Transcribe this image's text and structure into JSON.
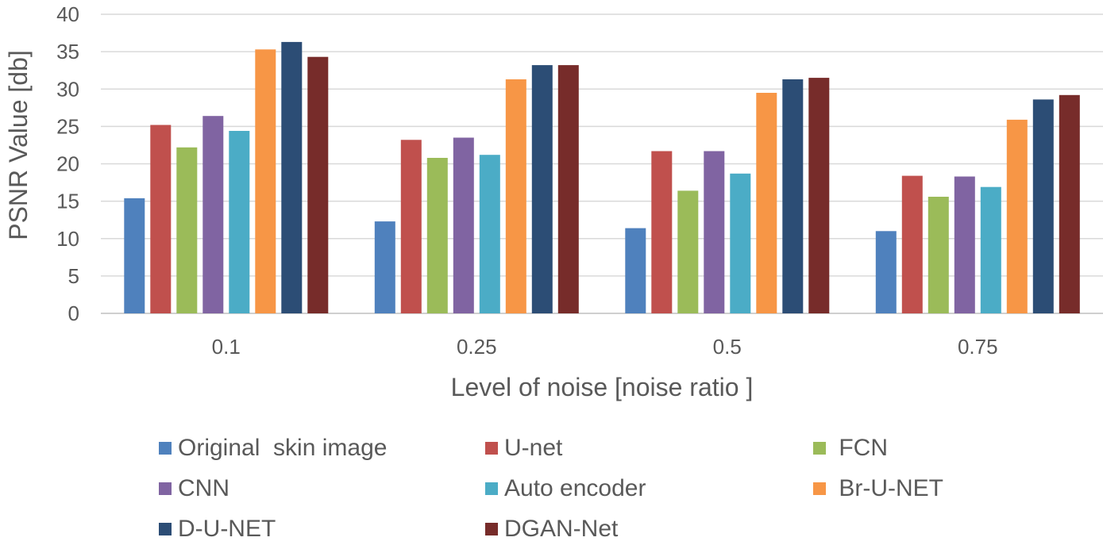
{
  "chart_data": {
    "type": "bar",
    "categories": [
      "0.1",
      "0.25",
      "0.5",
      "0.75"
    ],
    "xlabel": "Level of noise [noise ratio ]",
    "ylabel": "PSNR Value [db]",
    "ylim": [
      0,
      40
    ],
    "yticks": [
      0,
      5,
      10,
      15,
      20,
      25,
      30,
      35,
      40
    ],
    "ytick_labels": [
      "0",
      "5",
      "10",
      "15",
      "20",
      "25",
      "30",
      "35",
      "40"
    ],
    "grid": true,
    "legend_position": "bottom",
    "series": [
      {
        "name": "Original  skin image",
        "color": "#4F81BD",
        "values": [
          15.4,
          12.3,
          11.4,
          11.0
        ]
      },
      {
        "name": "U-net",
        "color": "#C0504D",
        "values": [
          25.2,
          23.2,
          21.7,
          18.4
        ]
      },
      {
        "name": " FCN",
        "color": "#9BBB59",
        "values": [
          22.2,
          20.8,
          16.4,
          15.6
        ]
      },
      {
        "name": "CNN",
        "color": "#8064A2",
        "values": [
          26.4,
          23.5,
          21.7,
          18.3
        ]
      },
      {
        "name": "Auto encoder",
        "color": "#4BACC6",
        "values": [
          24.4,
          21.2,
          18.7,
          16.9
        ]
      },
      {
        "name": " Br-U-NET",
        "color": "#F79646",
        "values": [
          35.3,
          31.3,
          29.5,
          25.9
        ]
      },
      {
        "name": "D-U-NET",
        "color": "#2C4D75",
        "values": [
          36.3,
          33.2,
          31.3,
          28.6
        ]
      },
      {
        "name": "DGAN-Net",
        "color": "#772C2A",
        "values": [
          34.3,
          33.2,
          31.5,
          29.2
        ]
      }
    ]
  }
}
